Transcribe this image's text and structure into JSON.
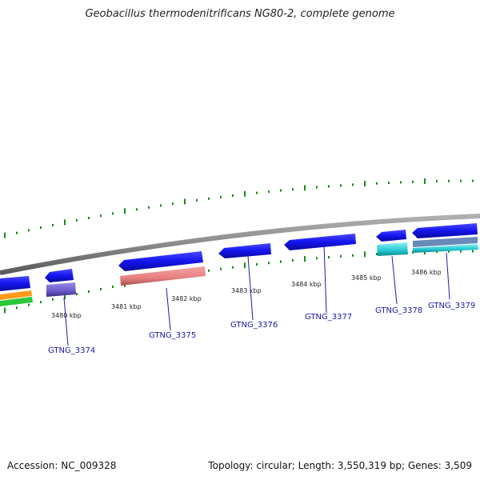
{
  "title": "Geobacillus thermodenitrificans NG80-2, complete genome",
  "accession_text": "Accession: NC_009328",
  "summary_text": "Topology: circular; Length: 3,550,319 bp; Genes: 3,509",
  "tick_labels": [
    "3480 kbp",
    "3481 kbp",
    "3482 kbp",
    "3483 kbp",
    "3484 kbp",
    "3485 kbp",
    "3486 kbp"
  ],
  "gene_labels": [
    "GTNG_3374",
    "GTNG_3375",
    "GTNG_3376",
    "GTNG_3377",
    "GTNG_3378",
    "GTNG_3379"
  ],
  "colors": {
    "backbone": "#8a8a8a",
    "cds": "#1a1aee",
    "gc_skew": "#1a8a1a",
    "label": "#1a1aa8",
    "salmon": "#ee8888",
    "purple": "#7a6ad0",
    "cyan": "#22d8e0",
    "orange": "#ff9a1a",
    "green": "#2ac83a"
  }
}
